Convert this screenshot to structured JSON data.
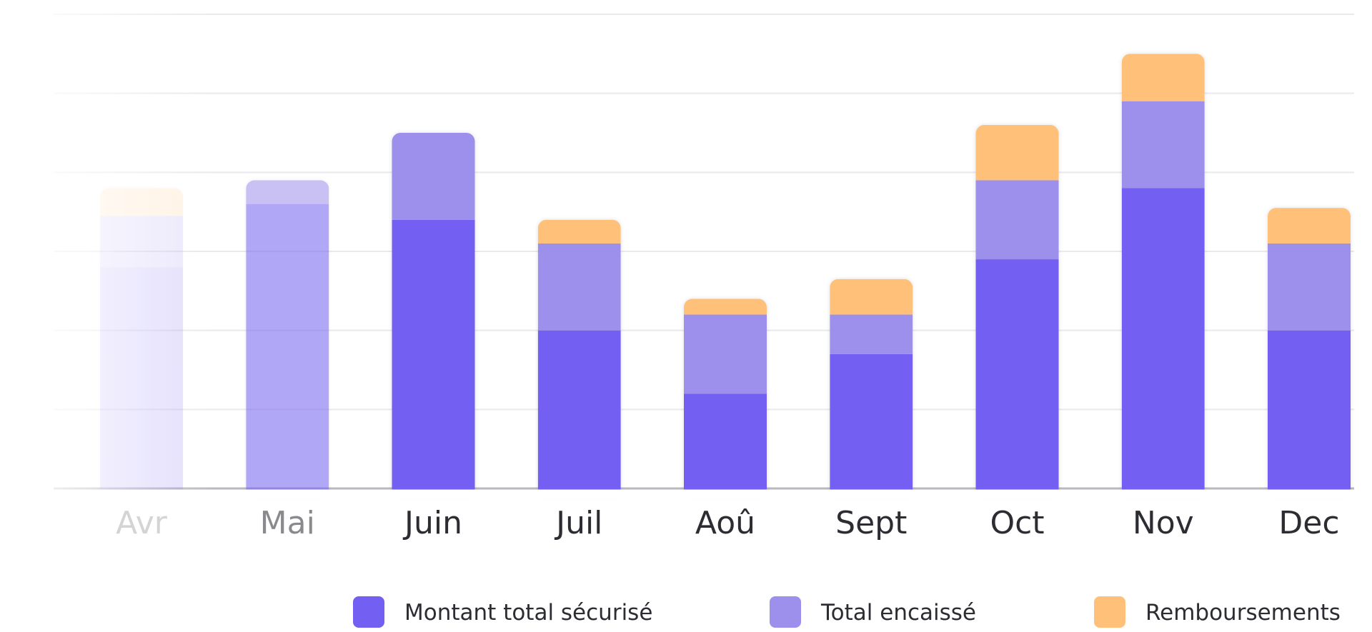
{
  "chart_data": {
    "type": "bar",
    "stacked": true,
    "categories": [
      "Avr",
      "Mai",
      "Juin",
      "Juil",
      "Aoû",
      "Sept",
      "Oct",
      "Nov",
      "Dec"
    ],
    "series": [
      {
        "name": "Montant total sécurisé",
        "color": "#7360f2",
        "values": [
          2.8,
          3.6,
          3.4,
          2.0,
          1.2,
          1.7,
          2.9,
          3.8,
          2.0
        ]
      },
      {
        "name": "Total encaissé",
        "color": "#9d8fec",
        "values": [
          0.65,
          0.3,
          1.1,
          1.1,
          1.0,
          0.5,
          1.0,
          1.1,
          1.1
        ]
      },
      {
        "name": "Remboursements",
        "color": "#ffc07a",
        "values": [
          0.35,
          0.0,
          0.0,
          0.3,
          0.2,
          0.45,
          0.7,
          0.6,
          0.45
        ]
      }
    ],
    "category_opacity": [
      0.2,
      0.55,
      1,
      1,
      1,
      1,
      1,
      1,
      1
    ],
    "ylim": [
      0,
      6
    ],
    "grid": true,
    "legend_position": "bottom-right",
    "title": "",
    "xlabel": "",
    "ylabel": ""
  }
}
